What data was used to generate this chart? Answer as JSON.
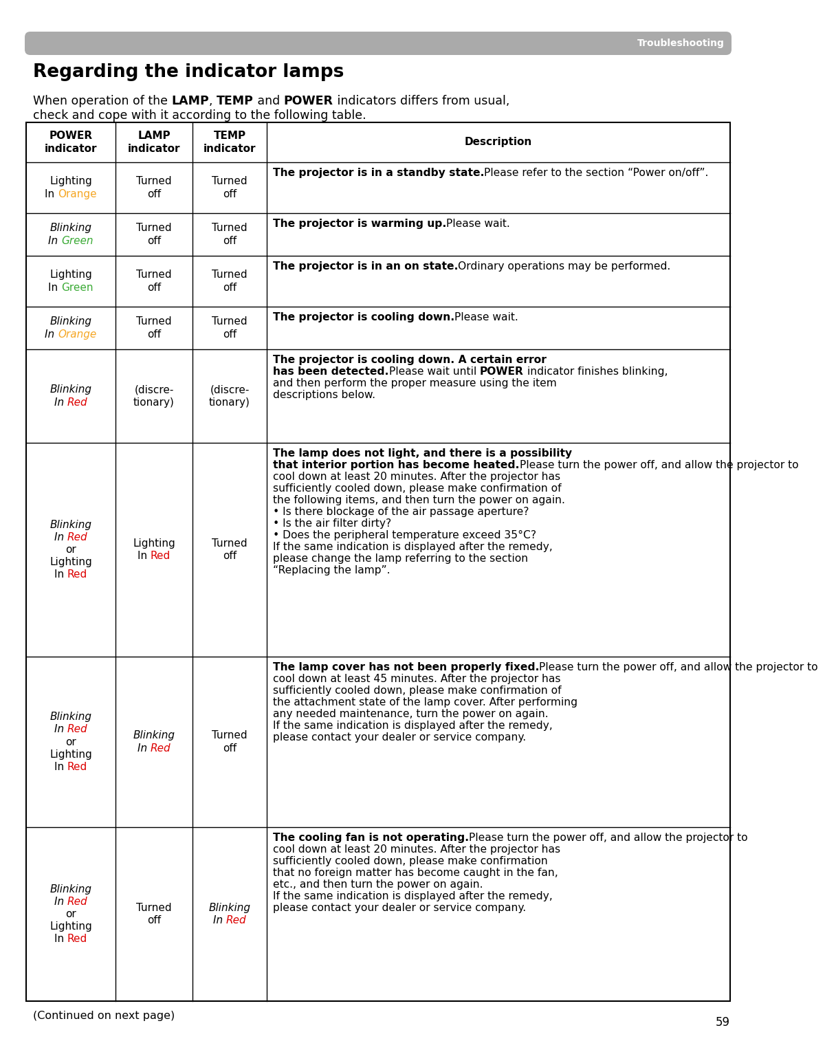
{
  "title": "Regarding the indicator lamps",
  "header_bar_color": "#aaaaaa",
  "header_bar_text": "Troubleshooting",
  "header_bar_text_color": "#ffffff",
  "orange_color": "#f5a623",
  "green_color": "#3aaa35",
  "red_color": "#dd0000",
  "page_number": "59",
  "footer_text": "(Continued on next page)",
  "bg_color": "#ffffff",
  "col_headers": [
    "POWER\nindicator",
    "LAMP\nindicator",
    "TEMP\nindicator",
    "Description"
  ],
  "rows": [
    {
      "power": [
        [
          "Lighting\nIn ",
          "black",
          false
        ],
        [
          "Orange",
          "#f5a623",
          false
        ]
      ],
      "lamp": [
        [
          "Turned\noff",
          "black",
          false
        ]
      ],
      "temp": [
        [
          "Turned\noff",
          "black",
          false
        ]
      ],
      "desc": [
        [
          "The projector is in a standby state.",
          "black",
          true,
          true
        ],
        [
          "Please refer to the section “Power on/off”.",
          "black",
          false,
          false
        ]
      ]
    },
    {
      "power": [
        [
          "Blinking\nIn ",
          "black",
          true
        ],
        [
          "Green",
          "#3aaa35",
          true
        ]
      ],
      "lamp": [
        [
          "Turned\noff",
          "black",
          false
        ]
      ],
      "temp": [
        [
          "Turned\noff",
          "black",
          false
        ]
      ],
      "desc": [
        [
          "The projector is warming up.",
          "black",
          true,
          true
        ],
        [
          "Please wait.",
          "black",
          false,
          false
        ]
      ]
    },
    {
      "power": [
        [
          "Lighting\nIn ",
          "black",
          false
        ],
        [
          "Green",
          "#3aaa35",
          false
        ]
      ],
      "lamp": [
        [
          "Turned\noff",
          "black",
          false
        ]
      ],
      "temp": [
        [
          "Turned\noff",
          "black",
          false
        ]
      ],
      "desc": [
        [
          "The projector is in an on state.",
          "black",
          true,
          true
        ],
        [
          "Ordinary operations may be performed.",
          "black",
          false,
          false
        ]
      ]
    },
    {
      "power": [
        [
          "Blinking\nIn ",
          "black",
          true
        ],
        [
          "Orange",
          "#f5a623",
          true
        ]
      ],
      "lamp": [
        [
          "Turned\noff",
          "black",
          false
        ]
      ],
      "temp": [
        [
          "Turned\noff",
          "black",
          false
        ]
      ],
      "desc": [
        [
          "The projector is cooling down.",
          "black",
          true,
          true
        ],
        [
          "Please wait.",
          "black",
          false,
          false
        ]
      ]
    },
    {
      "power": [
        [
          "Blinking\nIn ",
          "black",
          true
        ],
        [
          "Red",
          "#dd0000",
          true
        ]
      ],
      "lamp": [
        [
          "(discre-\ntionary)",
          "black",
          false
        ]
      ],
      "temp": [
        [
          "(discre-\ntionary)",
          "black",
          false
        ]
      ],
      "desc": [
        [
          "The projector is cooling down. A certain error\nhas been detected.",
          "black",
          true,
          true
        ],
        [
          "Please wait until ",
          "black",
          false,
          false
        ],
        [
          "POWER",
          "black",
          false,
          true
        ],
        [
          " indicator finishes blinking,\nand then perform the proper measure using the item\ndescriptions below.",
          "black",
          false,
          false
        ]
      ]
    },
    {
      "power": [
        [
          "Blinking\nIn ",
          "black",
          true
        ],
        [
          "Red",
          "#dd0000",
          true
        ],
        [
          "\nor\nLighting\nIn ",
          "black",
          false
        ],
        [
          "Red",
          "#dd0000",
          false
        ]
      ],
      "lamp": [
        [
          "Lighting\nIn ",
          "black",
          false
        ],
        [
          "Red",
          "#dd0000",
          false
        ]
      ],
      "temp": [
        [
          "Turned\noff",
          "black",
          false
        ]
      ],
      "desc": [
        [
          "The lamp does not light, and there is a possibility\nthat interior portion has become heated.",
          "black",
          true,
          true
        ],
        [
          "Please turn the power off, and allow the projector to\ncool down at least 20 minutes. After the projector has\nsufficiently cooled down, please make confirmation of\nthe following items, and then turn the power on again.\n• Is there blockage of the air passage aperture?\n• Is the air filter dirty?\n• Does the peripheral temperature exceed 35°C?\nIf the same indication is displayed after the remedy,\nplease change the lamp referring to the section\n“Replacing the lamp”.",
          "black",
          false,
          false
        ]
      ]
    },
    {
      "power": [
        [
          "Blinking\nIn ",
          "black",
          true
        ],
        [
          "Red",
          "#dd0000",
          true
        ],
        [
          "\nor\nLighting\nIn ",
          "black",
          false
        ],
        [
          "Red",
          "#dd0000",
          false
        ]
      ],
      "lamp": [
        [
          "Blinking\nIn ",
          "black",
          true
        ],
        [
          "Red",
          "#dd0000",
          true
        ]
      ],
      "temp": [
        [
          "Turned\noff",
          "black",
          false
        ]
      ],
      "desc": [
        [
          "The lamp cover has not been properly fixed.",
          "black",
          true,
          true
        ],
        [
          "Please turn the power off, and allow the projector to\ncool down at least 45 minutes. After the projector has\nsufficiently cooled down, please make confirmation of\nthe attachment state of the lamp cover. After performing\nany needed maintenance, turn the power on again.\nIf the same indication is displayed after the remedy,\nplease contact your dealer or service company.",
          "black",
          false,
          false
        ]
      ]
    },
    {
      "power": [
        [
          "Blinking\nIn ",
          "black",
          true
        ],
        [
          "Red",
          "#dd0000",
          true
        ],
        [
          "\nor\nLighting\nIn ",
          "black",
          false
        ],
        [
          "Red",
          "#dd0000",
          false
        ]
      ],
      "lamp": [
        [
          "Turned\noff",
          "black",
          false
        ]
      ],
      "temp": [
        [
          "Blinking\nIn ",
          "black",
          true
        ],
        [
          "Red",
          "#dd0000",
          true
        ]
      ],
      "desc": [
        [
          "The cooling fan is not operating.",
          "black",
          true,
          true
        ],
        [
          "Please turn the power off, and allow the projector to\ncool down at least 20 minutes. After the projector has\nsufficiently cooled down, please make confirmation\nthat no foreign matter has become caught in the fan,\netc., and then turn the power on again.\nIf the same indication is displayed after the remedy,\nplease contact your dealer or service company.",
          "black",
          false,
          false
        ]
      ]
    }
  ]
}
